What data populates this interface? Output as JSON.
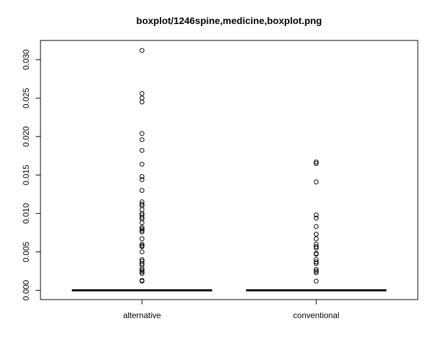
{
  "chart_data": {
    "type": "boxplot",
    "title": "boxplot/1246spine,medicine,boxplot.png",
    "xlabel": "",
    "ylabel": "",
    "categories": [
      "alternative",
      "conventional"
    ],
    "y_ticks": [
      "0.000",
      "0.005",
      "0.010",
      "0.015",
      "0.020",
      "0.025",
      "0.030"
    ],
    "ylim": [
      -0.0012,
      0.0325
    ],
    "grid": false,
    "legend": "none",
    "boxes": [
      {
        "name": "alternative",
        "min": 0.0,
        "q1": 0.0,
        "median": 0.0,
        "q3": 0.0,
        "max": 0.0,
        "outliers": [
          0.0312,
          0.0256,
          0.025,
          0.0245,
          0.0204,
          0.0196,
          0.0182,
          0.0164,
          0.0148,
          0.0144,
          0.013,
          0.0115,
          0.0112,
          0.011,
          0.0105,
          0.01,
          0.0098,
          0.0095,
          0.0093,
          0.0088,
          0.0082,
          0.008,
          0.0078,
          0.0076,
          0.0067,
          0.006,
          0.0058,
          0.0057,
          0.005,
          0.004,
          0.0038,
          0.0035,
          0.0033,
          0.0028,
          0.0026,
          0.0024,
          0.0022,
          0.0013,
          0.0012
        ]
      },
      {
        "name": "conventional",
        "min": 0.0,
        "q1": 0.0,
        "median": 0.0,
        "q3": 0.0,
        "max": 0.0,
        "outliers": [
          0.0167,
          0.0165,
          0.0141,
          0.0098,
          0.0094,
          0.0083,
          0.0073,
          0.0067,
          0.006,
          0.0057,
          0.0055,
          0.0048,
          0.0047,
          0.004,
          0.0037,
          0.0035,
          0.0027,
          0.0025,
          0.0023,
          0.0012
        ]
      }
    ]
  }
}
